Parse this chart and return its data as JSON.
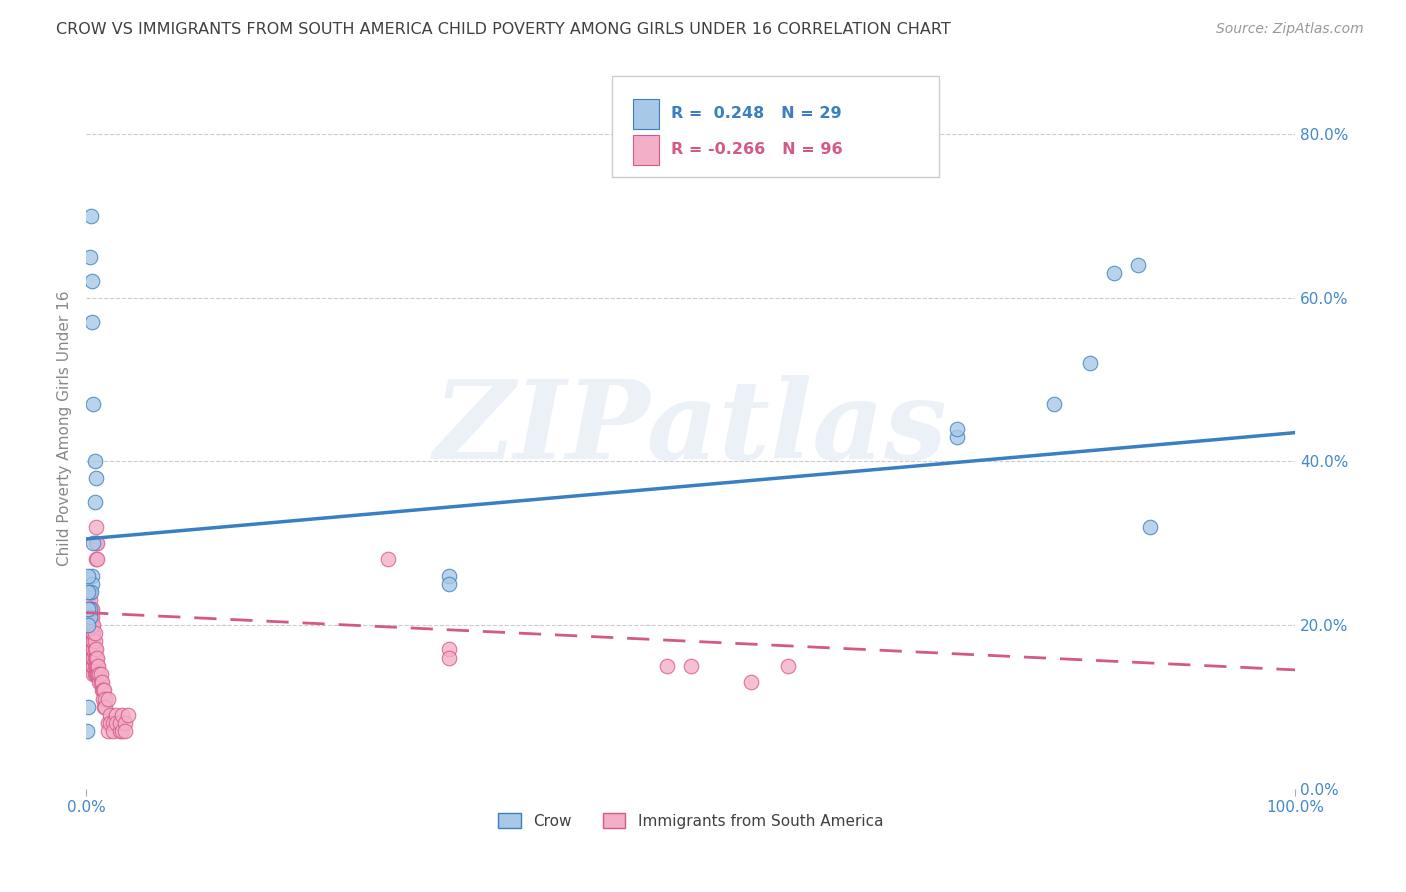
{
  "title": "CROW VS IMMIGRANTS FROM SOUTH AMERICA CHILD POVERTY AMONG GIRLS UNDER 16 CORRELATION CHART",
  "source": "Source: ZipAtlas.com",
  "ylabel": "Child Poverty Among Girls Under 16",
  "background_color": "#ffffff",
  "watermark": "ZIPatlas",
  "crow_R": 0.248,
  "crow_N": 29,
  "imm_R": -0.266,
  "imm_N": 96,
  "crow_color": "#a8c8e8",
  "crow_line_color": "#3a7fc1",
  "imm_color": "#f4afc8",
  "imm_line_color": "#d45888",
  "crow_scatter": [
    [
      0.003,
      0.65
    ],
    [
      0.004,
      0.7
    ],
    [
      0.005,
      0.62
    ],
    [
      0.005,
      0.57
    ],
    [
      0.006,
      0.47
    ],
    [
      0.007,
      0.4
    ],
    [
      0.008,
      0.38
    ],
    [
      0.007,
      0.35
    ],
    [
      0.006,
      0.3
    ],
    [
      0.005,
      0.26
    ],
    [
      0.005,
      0.25
    ],
    [
      0.004,
      0.24
    ],
    [
      0.003,
      0.22
    ],
    [
      0.003,
      0.21
    ],
    [
      0.002,
      0.2
    ],
    [
      0.002,
      0.22
    ],
    [
      0.002,
      0.24
    ],
    [
      0.002,
      0.26
    ],
    [
      0.002,
      0.1
    ],
    [
      0.001,
      0.07
    ],
    [
      0.3,
      0.26
    ],
    [
      0.3,
      0.25
    ],
    [
      0.72,
      0.43
    ],
    [
      0.72,
      0.44
    ],
    [
      0.8,
      0.47
    ],
    [
      0.83,
      0.52
    ],
    [
      0.85,
      0.63
    ],
    [
      0.87,
      0.64
    ],
    [
      0.88,
      0.32
    ]
  ],
  "imm_scatter": [
    [
      0.001,
      0.2
    ],
    [
      0.001,
      0.21
    ],
    [
      0.001,
      0.22
    ],
    [
      0.001,
      0.23
    ],
    [
      0.002,
      0.18
    ],
    [
      0.002,
      0.19
    ],
    [
      0.002,
      0.2
    ],
    [
      0.002,
      0.21
    ],
    [
      0.002,
      0.22
    ],
    [
      0.002,
      0.23
    ],
    [
      0.002,
      0.24
    ],
    [
      0.003,
      0.17
    ],
    [
      0.003,
      0.18
    ],
    [
      0.003,
      0.19
    ],
    [
      0.003,
      0.2
    ],
    [
      0.003,
      0.21
    ],
    [
      0.003,
      0.22
    ],
    [
      0.003,
      0.23
    ],
    [
      0.003,
      0.24
    ],
    [
      0.004,
      0.16
    ],
    [
      0.004,
      0.17
    ],
    [
      0.004,
      0.18
    ],
    [
      0.004,
      0.19
    ],
    [
      0.004,
      0.2
    ],
    [
      0.004,
      0.21
    ],
    [
      0.004,
      0.22
    ],
    [
      0.005,
      0.15
    ],
    [
      0.005,
      0.16
    ],
    [
      0.005,
      0.17
    ],
    [
      0.005,
      0.18
    ],
    [
      0.005,
      0.19
    ],
    [
      0.005,
      0.2
    ],
    [
      0.005,
      0.21
    ],
    [
      0.005,
      0.22
    ],
    [
      0.006,
      0.14
    ],
    [
      0.006,
      0.15
    ],
    [
      0.006,
      0.16
    ],
    [
      0.006,
      0.17
    ],
    [
      0.006,
      0.18
    ],
    [
      0.006,
      0.19
    ],
    [
      0.006,
      0.2
    ],
    [
      0.007,
      0.14
    ],
    [
      0.007,
      0.15
    ],
    [
      0.007,
      0.16
    ],
    [
      0.007,
      0.17
    ],
    [
      0.007,
      0.18
    ],
    [
      0.007,
      0.19
    ],
    [
      0.008,
      0.14
    ],
    [
      0.008,
      0.15
    ],
    [
      0.008,
      0.16
    ],
    [
      0.008,
      0.17
    ],
    [
      0.008,
      0.28
    ],
    [
      0.008,
      0.3
    ],
    [
      0.008,
      0.32
    ],
    [
      0.009,
      0.14
    ],
    [
      0.009,
      0.15
    ],
    [
      0.009,
      0.16
    ],
    [
      0.009,
      0.28
    ],
    [
      0.009,
      0.3
    ],
    [
      0.01,
      0.14
    ],
    [
      0.01,
      0.15
    ],
    [
      0.011,
      0.13
    ],
    [
      0.011,
      0.14
    ],
    [
      0.012,
      0.13
    ],
    [
      0.012,
      0.14
    ],
    [
      0.013,
      0.12
    ],
    [
      0.013,
      0.13
    ],
    [
      0.014,
      0.12
    ],
    [
      0.014,
      0.11
    ],
    [
      0.015,
      0.12
    ],
    [
      0.015,
      0.1
    ],
    [
      0.016,
      0.11
    ],
    [
      0.016,
      0.1
    ],
    [
      0.018,
      0.11
    ],
    [
      0.018,
      0.08
    ],
    [
      0.018,
      0.07
    ],
    [
      0.02,
      0.09
    ],
    [
      0.02,
      0.08
    ],
    [
      0.022,
      0.08
    ],
    [
      0.022,
      0.07
    ],
    [
      0.025,
      0.09
    ],
    [
      0.025,
      0.08
    ],
    [
      0.028,
      0.07
    ],
    [
      0.028,
      0.08
    ],
    [
      0.03,
      0.09
    ],
    [
      0.03,
      0.07
    ],
    [
      0.032,
      0.08
    ],
    [
      0.032,
      0.07
    ],
    [
      0.035,
      0.09
    ],
    [
      0.25,
      0.28
    ],
    [
      0.3,
      0.17
    ],
    [
      0.3,
      0.16
    ],
    [
      0.48,
      0.15
    ],
    [
      0.5,
      0.15
    ],
    [
      0.55,
      0.13
    ],
    [
      0.58,
      0.15
    ]
  ],
  "crow_line_x": [
    0.0,
    1.0
  ],
  "crow_line_y": [
    0.305,
    0.435
  ],
  "imm_line_x": [
    0.0,
    1.0
  ],
  "imm_line_y": [
    0.215,
    0.145
  ],
  "xlim": [
    0.0,
    1.0
  ],
  "ylim": [
    0.0,
    0.88
  ],
  "xticks": [
    0.0,
    1.0
  ],
  "yticks_right": [
    0.0,
    0.2,
    0.4,
    0.6,
    0.8
  ],
  "grid_yticks": [
    0.2,
    0.4,
    0.6,
    0.8
  ],
  "grid_color": "#cccccc",
  "title_color": "#404040",
  "axis_label_color": "#888888",
  "tick_label_color": "#4488cc"
}
